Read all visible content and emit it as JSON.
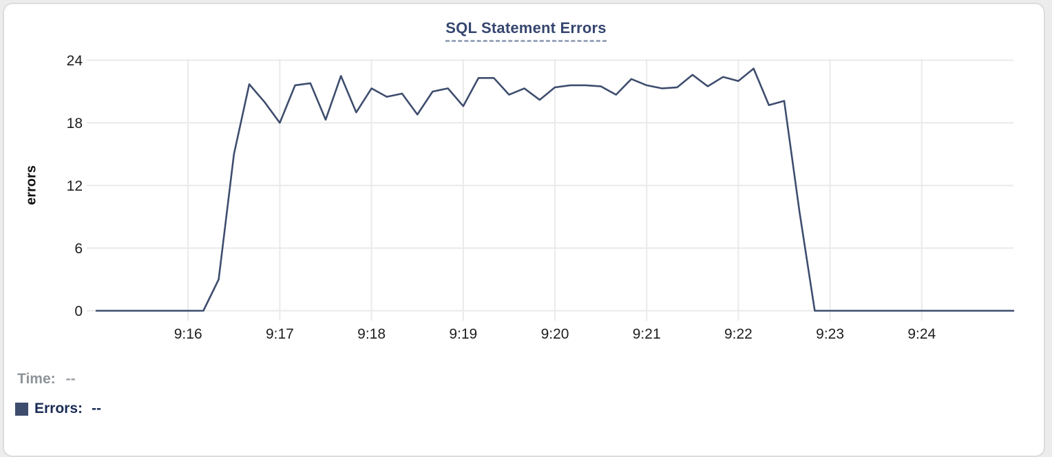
{
  "chart_data": {
    "type": "line",
    "title": "SQL Statement Errors",
    "xlabel": "",
    "ylabel": "errors",
    "ylim": [
      0,
      24
    ],
    "y_ticks": [
      0,
      6,
      12,
      18,
      24
    ],
    "x_tick_labels": [
      "9:16",
      "9:17",
      "9:18",
      "9:19",
      "9:20",
      "9:21",
      "9:22",
      "9:23",
      "9:24"
    ],
    "x_start": "9:15:00",
    "x_end": "9:25:00",
    "x_step_seconds": 10,
    "grid": true,
    "legend_position": "none",
    "series": [
      {
        "name": "Errors",
        "color": "#3e4d6e",
        "values": [
          0,
          0,
          0,
          0,
          0,
          0,
          0,
          0,
          3,
          15,
          21.7,
          20,
          18,
          21.6,
          21.8,
          18.3,
          22.5,
          19,
          21.3,
          20.5,
          20.8,
          18.8,
          21,
          21.3,
          19.6,
          22.3,
          22.3,
          20.7,
          21.3,
          20.2,
          21.4,
          21.6,
          21.6,
          21.5,
          20.7,
          22.2,
          21.6,
          21.3,
          21.4,
          22.6,
          21.5,
          22.4,
          22,
          23.2,
          19.7,
          20.1,
          9.5,
          0,
          0,
          0,
          0,
          0,
          0,
          0,
          0,
          0,
          0,
          0,
          0,
          0,
          0
        ]
      }
    ]
  },
  "readout": {
    "time_label": "Time:",
    "time_value": "--",
    "errors_label": "Errors:",
    "errors_value": "--"
  },
  "colors": {
    "line": "#3e4d6e",
    "title": "#36466f",
    "title_underline": "#9aa5bb",
    "grid": "#eaeaea",
    "tick_text": "#1d1d1d",
    "time_label_text": "#8f9499",
    "errors_label_text": "#1b2b55",
    "card_border": "#dcdcdc",
    "card_background": "#ffffff"
  }
}
